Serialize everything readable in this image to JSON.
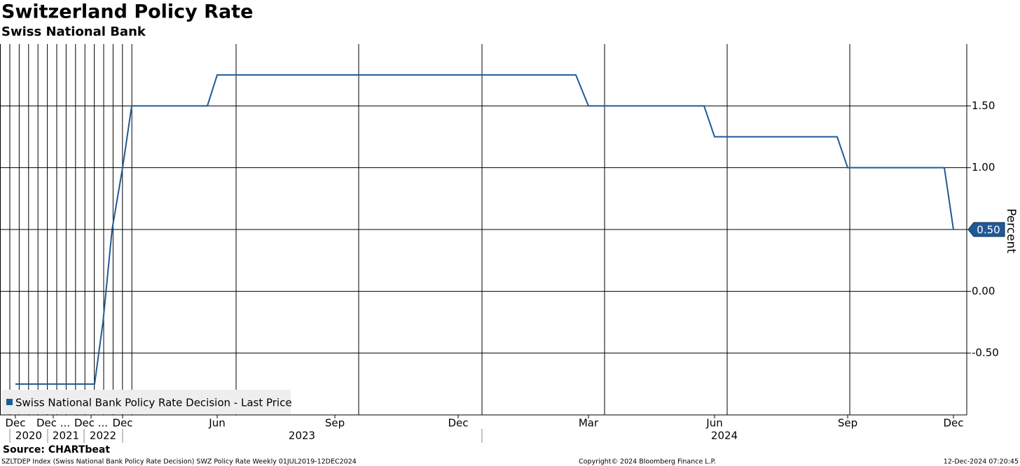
{
  "chart_data": {
    "type": "line",
    "title": "Switzerland Policy Rate",
    "subtitle": "Swiss National Bank",
    "y_label": "Percent",
    "x": [
      "2019-12",
      "2022-05",
      "2022-06",
      "2022-09",
      "2022-12",
      "2023-03",
      "2023-05",
      "2023-06",
      "2024-02",
      "2024-03",
      "2024-05",
      "2024-06",
      "2024-08",
      "2024-09",
      "2024-11",
      "2024-12"
    ],
    "series": [
      {
        "name": "Swiss National Bank Policy Rate Decision - Last Price",
        "color": "#1f5a96",
        "values": [
          -0.75,
          -0.75,
          -0.25,
          0.5,
          1.0,
          1.5,
          1.5,
          1.75,
          1.75,
          1.5,
          1.5,
          1.25,
          1.25,
          1.0,
          1.0,
          0.5
        ],
        "last_label": "0.50"
      }
    ],
    "ylim": [
      -1,
      2
    ],
    "yticks": [
      {
        "value": 1.5,
        "label": "1.50"
      },
      {
        "value": 1,
        "label": "1.00"
      },
      {
        "value": 0.5,
        "label": "0.50"
      },
      {
        "value": 0,
        "label": "0.00"
      },
      {
        "value": -0.5,
        "label": "-0.50"
      }
    ],
    "xticks": [
      {
        "value": "2019-12",
        "label": "Dec"
      },
      {
        "value": "2020-12",
        "label": "Dec ..."
      },
      {
        "value": "2021-12",
        "label": "Dec ..."
      },
      {
        "value": "2022-12",
        "label": "Dec"
      },
      {
        "value": "2023-06",
        "label": "Jun"
      },
      {
        "value": "2023-09",
        "label": "Sep"
      },
      {
        "value": "2023-12",
        "label": "Dec"
      },
      {
        "value": "2024-03",
        "label": "Mar"
      },
      {
        "value": "2024-06",
        "label": "Jun"
      },
      {
        "value": "2024-09",
        "label": "Sep"
      },
      {
        "value": "2024-12",
        "label": "Dec"
      }
    ],
    "x_years": [
      "2020",
      "2021",
      "2022",
      "2023",
      "2024"
    ],
    "grid": true,
    "legend": "bottom-left",
    "source": "Source: CHARTbeat",
    "footer_left": "SZLTDEP Index (Swiss National Bank Policy Rate Decision) SWZ Policy Rate  Weekly 01JUL2019-12DEC2024",
    "footer_center": "Copyright© 2024 Bloomberg Finance L.P.",
    "footer_right": "12-Dec-2024 07:20:45"
  }
}
